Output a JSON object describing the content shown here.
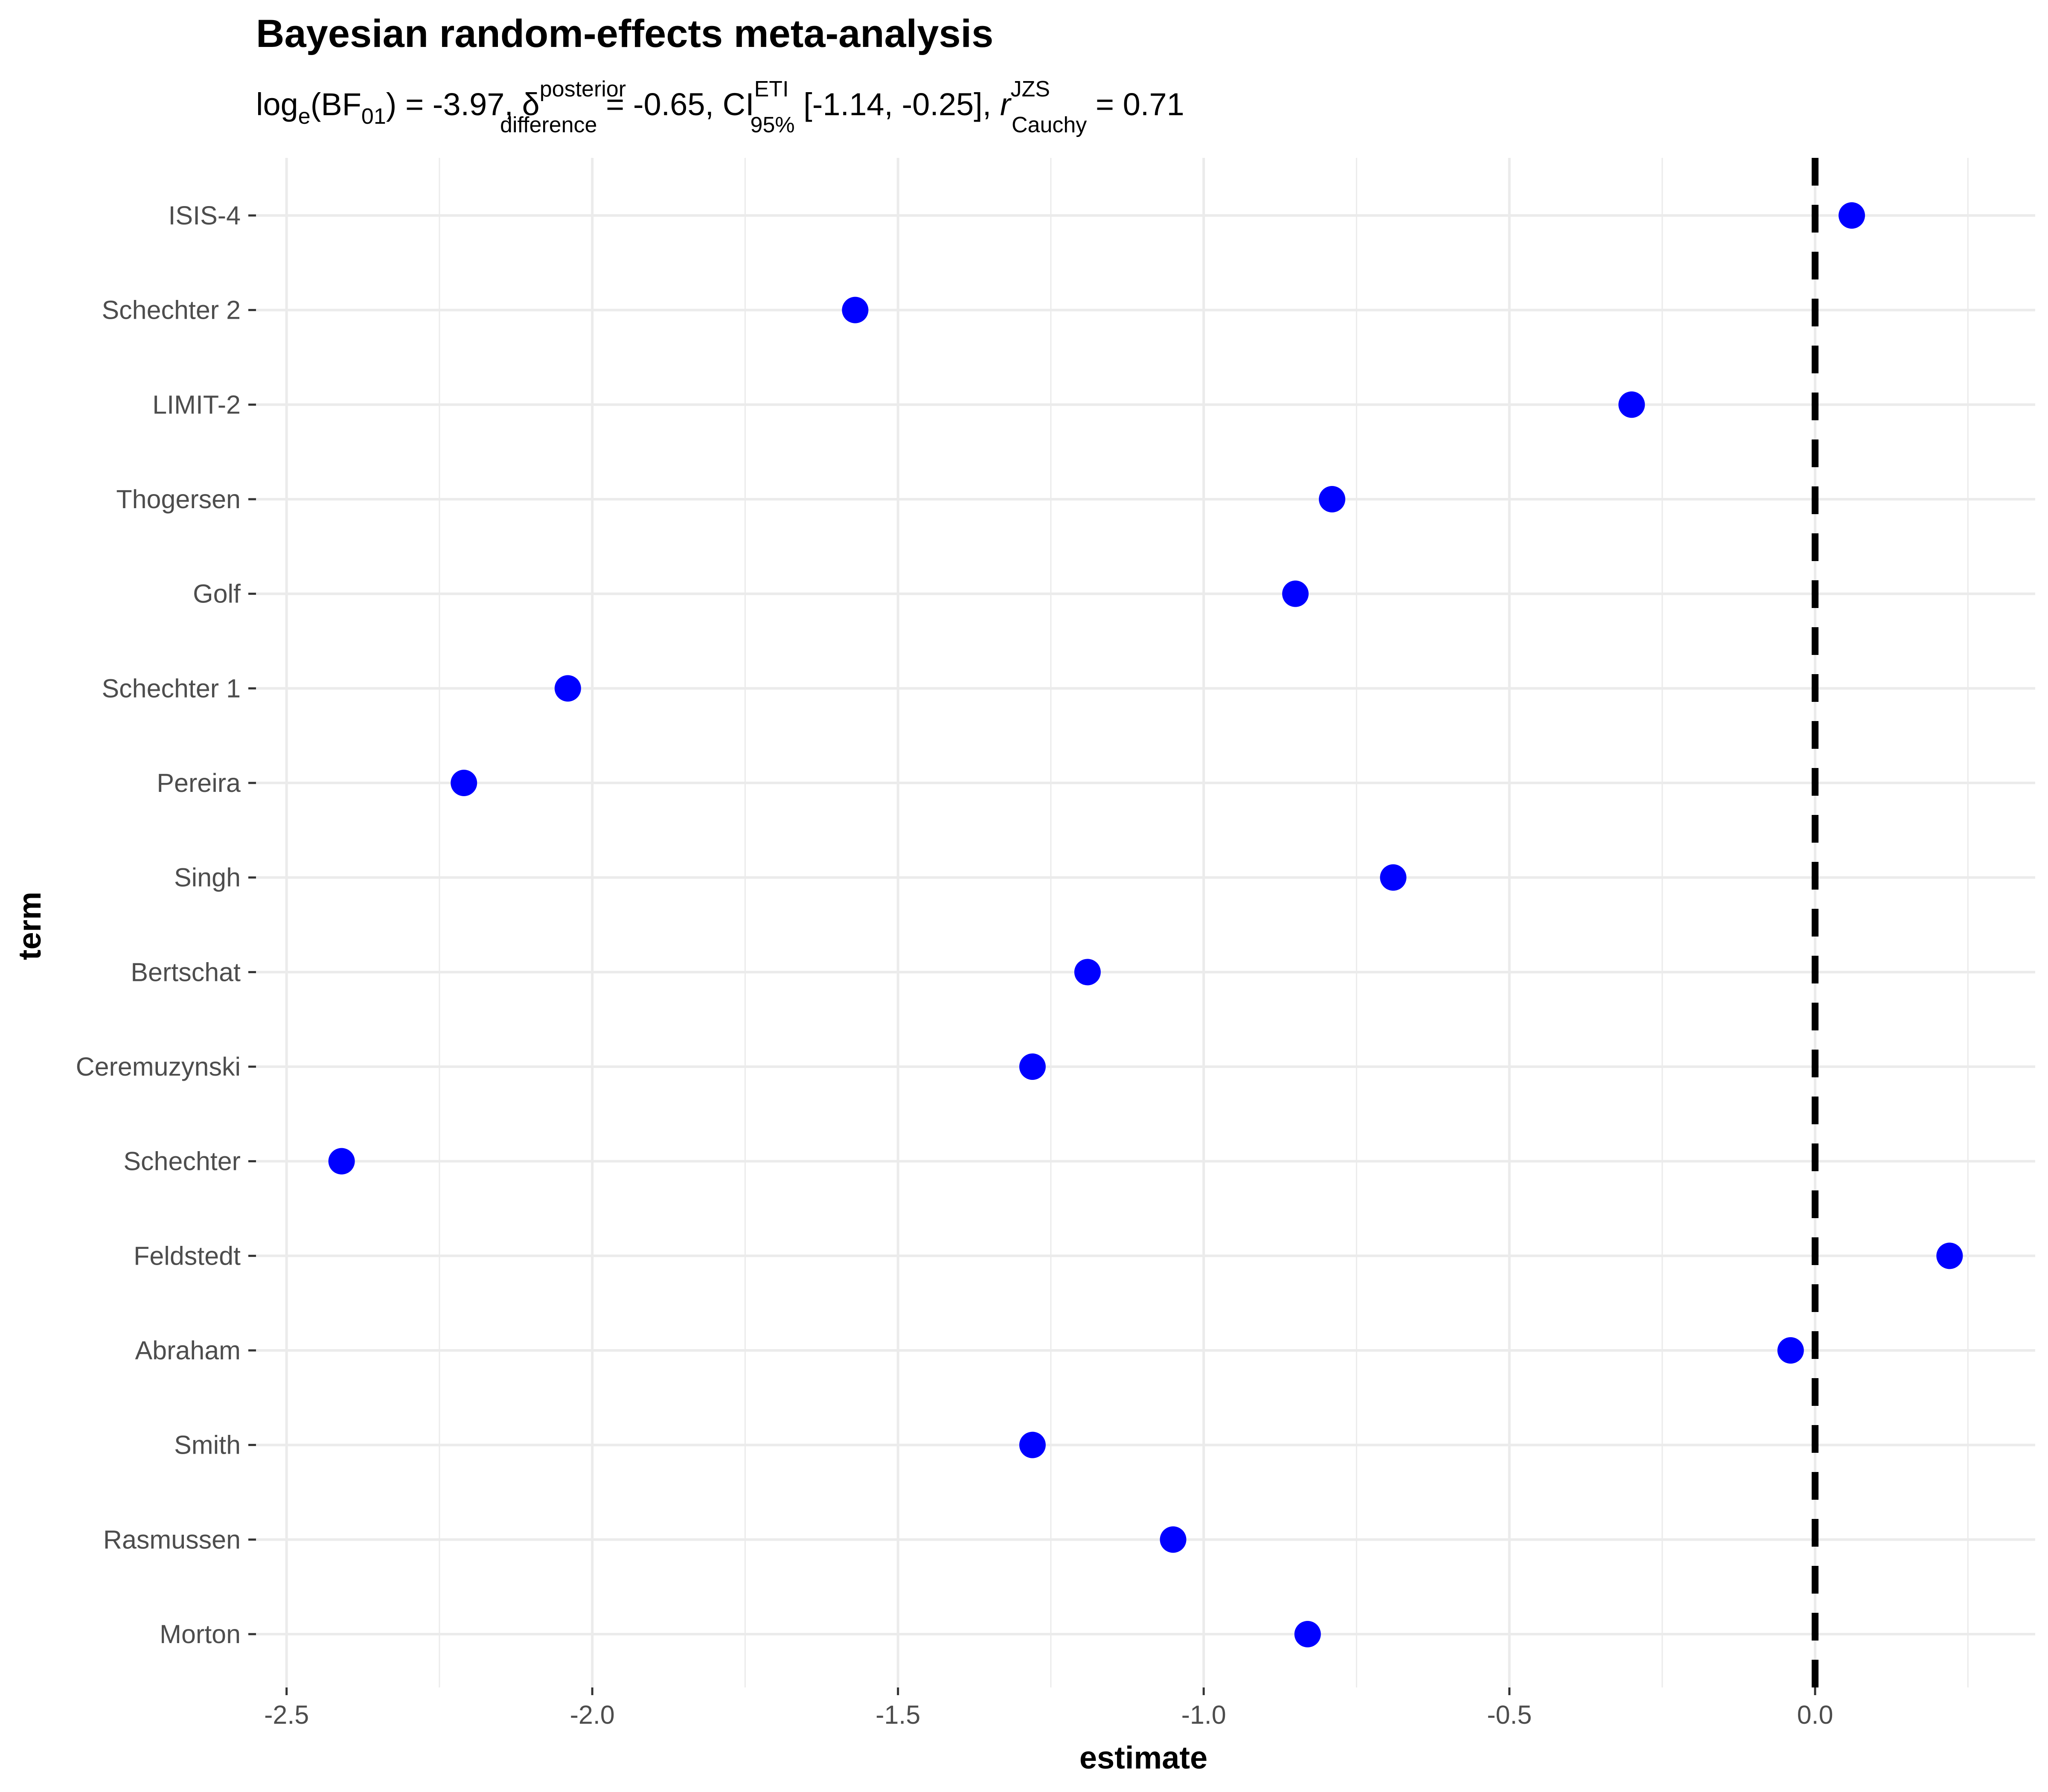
{
  "chart_data": {
    "type": "scatter",
    "title": "Bayesian random-effects meta-analysis",
    "subtitle": {
      "log_label": "log",
      "log_base": "e",
      "bf_label": "BF",
      "bf_sub": "01",
      "bf_value": "-3.97",
      "delta_symbol": "δ",
      "delta_sup": "posterior",
      "delta_sub": "difference",
      "delta_value": "-0.65",
      "ci_label": "CI",
      "ci_sup": "ETI",
      "ci_sub": "95%",
      "ci_value": "[-1.14, -0.25]",
      "r_label": "r",
      "r_sup": "JZS",
      "r_sub": "Cauchy",
      "r_value": "0.71"
    },
    "xlabel": "estimate",
    "ylabel": "term",
    "xlim": [
      -2.55,
      0.36
    ],
    "x_ticks": [
      -2.5,
      -2.0,
      -1.5,
      -1.0,
      -0.5,
      0.0
    ],
    "x_tick_labels": [
      "-2.5",
      "-2.0",
      "-1.5",
      "-1.0",
      "-0.5",
      "0.0"
    ],
    "reference_line_x": 0,
    "grid": true,
    "point_color": "#0000ff",
    "points": [
      {
        "term": "ISIS-4",
        "estimate": 0.06
      },
      {
        "term": "Schechter 2",
        "estimate": -1.57
      },
      {
        "term": "LIMIT-2",
        "estimate": -0.3
      },
      {
        "term": "Thogersen",
        "estimate": -0.79
      },
      {
        "term": "Golf",
        "estimate": -0.85
      },
      {
        "term": "Schechter 1",
        "estimate": -2.04
      },
      {
        "term": "Pereira",
        "estimate": -2.21
      },
      {
        "term": "Singh",
        "estimate": -0.69
      },
      {
        "term": "Bertschat",
        "estimate": -1.19
      },
      {
        "term": "Ceremuzynski",
        "estimate": -1.28
      },
      {
        "term": "Schechter",
        "estimate": -2.41
      },
      {
        "term": "Feldstedt",
        "estimate": 0.22
      },
      {
        "term": "Abraham",
        "estimate": -0.04
      },
      {
        "term": "Smith",
        "estimate": -1.28
      },
      {
        "term": "Rasmussen",
        "estimate": -1.05
      },
      {
        "term": "Morton",
        "estimate": -0.83
      }
    ]
  }
}
